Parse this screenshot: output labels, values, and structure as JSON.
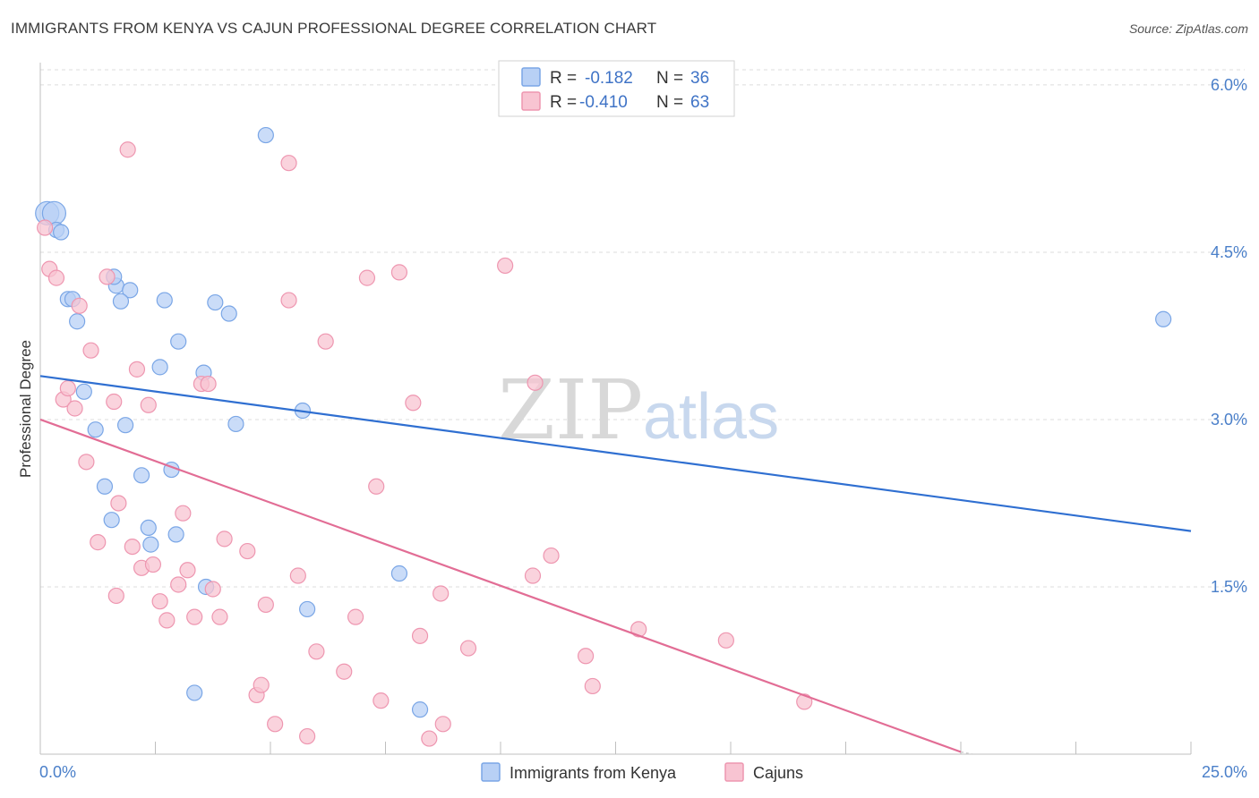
{
  "title": "IMMIGRANTS FROM KENYA VS CAJUN PROFESSIONAL DEGREE CORRELATION CHART",
  "source": "Source: ZipAtlas.com",
  "watermark": {
    "zip": "ZIP",
    "atlas": "atlas"
  },
  "colors": {
    "kenya_fill": "#b8d0f5",
    "kenya_stroke": "#7aa6e6",
    "kenya_line": "#2f6fd1",
    "cajun_fill": "#f8c4d2",
    "cajun_stroke": "#ee96b0",
    "cajun_line": "#e26d95",
    "grid": "#dcdcdc",
    "tick_text": "#4a7fc9"
  },
  "legend": {
    "rows": [
      {
        "r_label": "R =",
        "r_value": "-0.182",
        "n_label": "N =",
        "n_value": "36"
      },
      {
        "r_label": "R =",
        "r_value": "-0.410",
        "n_label": "N =",
        "n_value": "63"
      }
    ]
  },
  "chart_data": {
    "type": "scatter",
    "title": "IMMIGRANTS FROM KENYA VS CAJUN PROFESSIONAL DEGREE CORRELATION CHART",
    "xlabel": "",
    "ylabel": "Professional Degree",
    "xlim": [
      0,
      25
    ],
    "ylim": [
      0,
      6.2
    ],
    "x_tick_labels": [
      "0.0%",
      "25.0%"
    ],
    "y_ticks": [
      1.5,
      3.0,
      4.5,
      6.0
    ],
    "y_tick_labels": [
      "1.5%",
      "3.0%",
      "4.5%",
      "6.0%"
    ],
    "grid": true,
    "legend_position": "top-center",
    "series": [
      {
        "name": "Immigrants from Kenya",
        "r": -0.182,
        "n": 36,
        "trend": {
          "x": [
            0,
            25
          ],
          "y": [
            3.39,
            2.0
          ]
        },
        "points": [
          [
            0.15,
            4.85
          ],
          [
            0.3,
            4.85
          ],
          [
            0.35,
            4.7
          ],
          [
            0.45,
            4.68
          ],
          [
            0.6,
            4.08
          ],
          [
            0.7,
            4.08
          ],
          [
            0.8,
            3.88
          ],
          [
            0.95,
            3.25
          ],
          [
            1.2,
            2.91
          ],
          [
            1.4,
            2.4
          ],
          [
            1.65,
            4.2
          ],
          [
            1.6,
            4.28
          ],
          [
            1.55,
            2.1
          ],
          [
            1.85,
            2.95
          ],
          [
            1.95,
            4.16
          ],
          [
            1.75,
            4.06
          ],
          [
            2.2,
            2.5
          ],
          [
            2.35,
            2.03
          ],
          [
            2.4,
            1.88
          ],
          [
            2.6,
            3.47
          ],
          [
            2.7,
            4.07
          ],
          [
            2.85,
            2.55
          ],
          [
            2.95,
            1.97
          ],
          [
            3.0,
            3.7
          ],
          [
            3.35,
            0.55
          ],
          [
            3.55,
            3.42
          ],
          [
            3.6,
            1.5
          ],
          [
            3.8,
            4.05
          ],
          [
            4.1,
            3.95
          ],
          [
            4.25,
            2.96
          ],
          [
            4.9,
            5.55
          ],
          [
            5.7,
            3.08
          ],
          [
            5.8,
            1.3
          ],
          [
            7.8,
            1.62
          ],
          [
            8.25,
            0.4
          ],
          [
            24.4,
            3.9
          ]
        ]
      },
      {
        "name": "Cajuns",
        "r": -0.41,
        "n": 63,
        "trend": {
          "x": [
            0,
            20.0
          ],
          "y": [
            3.0,
            0.02
          ]
        },
        "points": [
          [
            0.1,
            4.72
          ],
          [
            0.2,
            4.35
          ],
          [
            0.35,
            4.27
          ],
          [
            0.5,
            3.18
          ],
          [
            0.6,
            3.28
          ],
          [
            0.75,
            3.1
          ],
          [
            0.85,
            4.02
          ],
          [
            1.0,
            2.62
          ],
          [
            1.1,
            3.62
          ],
          [
            1.25,
            1.9
          ],
          [
            1.45,
            4.28
          ],
          [
            1.6,
            3.16
          ],
          [
            1.65,
            1.42
          ],
          [
            1.7,
            2.25
          ],
          [
            1.9,
            5.42
          ],
          [
            2.0,
            1.86
          ],
          [
            2.1,
            3.45
          ],
          [
            2.2,
            1.67
          ],
          [
            2.35,
            3.13
          ],
          [
            2.45,
            1.7
          ],
          [
            2.6,
            1.37
          ],
          [
            2.75,
            1.2
          ],
          [
            3.0,
            1.52
          ],
          [
            3.1,
            2.16
          ],
          [
            3.2,
            1.65
          ],
          [
            3.35,
            1.23
          ],
          [
            3.5,
            3.32
          ],
          [
            3.65,
            3.32
          ],
          [
            3.75,
            1.48
          ],
          [
            3.9,
            1.23
          ],
          [
            4.0,
            1.93
          ],
          [
            4.5,
            1.82
          ],
          [
            4.7,
            0.53
          ],
          [
            4.8,
            0.62
          ],
          [
            4.9,
            1.34
          ],
          [
            5.1,
            0.27
          ],
          [
            5.4,
            5.3
          ],
          [
            5.4,
            4.07
          ],
          [
            5.6,
            1.6
          ],
          [
            5.8,
            0.16
          ],
          [
            6.0,
            0.92
          ],
          [
            6.2,
            3.7
          ],
          [
            6.6,
            0.74
          ],
          [
            6.85,
            1.23
          ],
          [
            7.1,
            4.27
          ],
          [
            7.3,
            2.4
          ],
          [
            7.4,
            0.48
          ],
          [
            7.8,
            4.32
          ],
          [
            8.1,
            3.15
          ],
          [
            8.25,
            1.06
          ],
          [
            8.45,
            0.14
          ],
          [
            8.7,
            1.44
          ],
          [
            8.75,
            0.27
          ],
          [
            9.3,
            0.95
          ],
          [
            10.1,
            4.38
          ],
          [
            10.7,
            1.6
          ],
          [
            10.75,
            3.33
          ],
          [
            11.1,
            1.78
          ],
          [
            11.85,
            0.88
          ],
          [
            12.0,
            0.61
          ],
          [
            13.0,
            1.12
          ],
          [
            14.9,
            1.02
          ],
          [
            16.6,
            0.47
          ]
        ]
      }
    ]
  }
}
